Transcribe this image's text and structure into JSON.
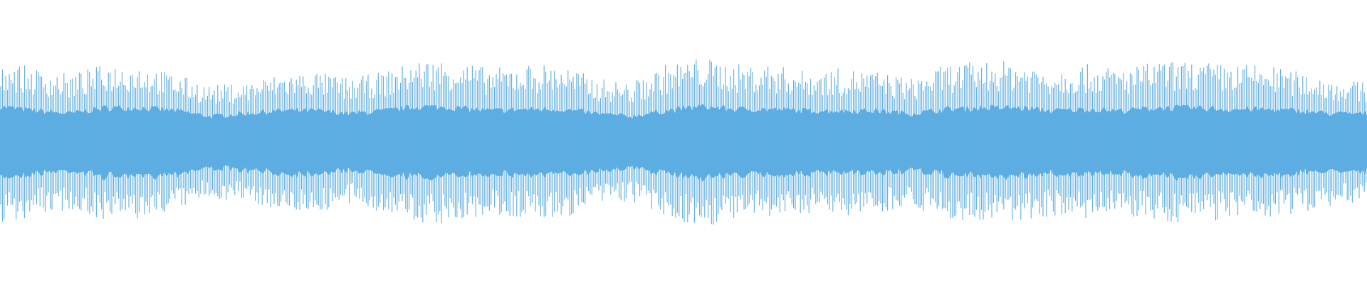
{
  "chart_data": {
    "type": "area",
    "grid": false,
    "ylim": [
      -1,
      1
    ],
    "color": "#5dade2",
    "background": "#ffffff",
    "peak_envelope": [
      0.58,
      0.52,
      0.48,
      0.55,
      0.55,
      0.48,
      0.4,
      0.42,
      0.48,
      0.5,
      0.45,
      0.5,
      0.58,
      0.58,
      0.52,
      0.55,
      0.55,
      0.45,
      0.42,
      0.55,
      0.6,
      0.55,
      0.55,
      0.5,
      0.52,
      0.5,
      0.45,
      0.55,
      0.57,
      0.57,
      0.52,
      0.55,
      0.52,
      0.57,
      0.57,
      0.55,
      0.55,
      0.5,
      0.45,
      0.42
    ],
    "body_envelope": [
      0.25,
      0.22,
      0.2,
      0.24,
      0.24,
      0.22,
      0.18,
      0.2,
      0.22,
      0.22,
      0.2,
      0.22,
      0.25,
      0.24,
      0.22,
      0.23,
      0.23,
      0.2,
      0.18,
      0.22,
      0.25,
      0.23,
      0.23,
      0.22,
      0.22,
      0.22,
      0.2,
      0.23,
      0.24,
      0.24,
      0.22,
      0.23,
      0.22,
      0.24,
      0.24,
      0.23,
      0.23,
      0.22,
      0.2,
      0.2
    ]
  }
}
